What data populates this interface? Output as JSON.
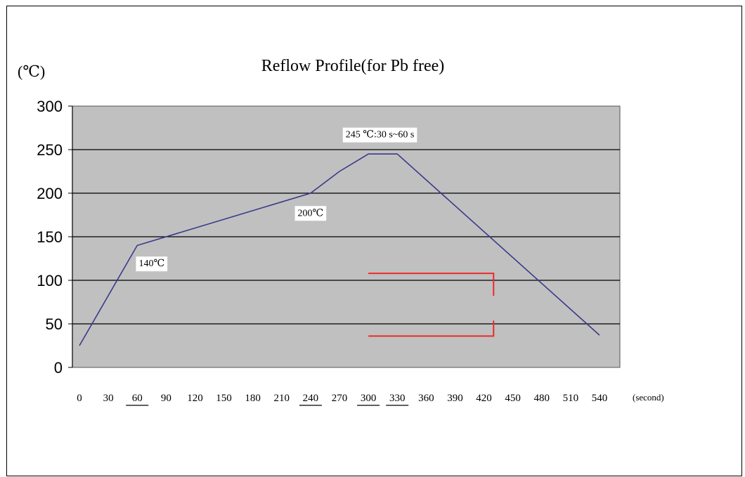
{
  "chart_data": {
    "type": "line",
    "title": "Reflow Profile(for Pb free)",
    "ylabel": "(℃)",
    "xlabel": "(second)",
    "ylim": [
      0,
      300
    ],
    "xlim": [
      0,
      540
    ],
    "yticks": [
      0,
      50,
      100,
      150,
      200,
      250,
      300
    ],
    "xticks": [
      0,
      30,
      60,
      90,
      120,
      150,
      180,
      210,
      240,
      270,
      300,
      330,
      360,
      390,
      420,
      450,
      480,
      510,
      540
    ],
    "xticks_underlined": [
      60,
      240,
      300,
      330
    ],
    "grid": true,
    "background": "#c0c0c0",
    "series": [
      {
        "color": "#3a3a8c",
        "x": [
          0,
          60,
          240,
          270,
          300,
          330,
          540
        ],
        "y": [
          25,
          140,
          200,
          225,
          245,
          245,
          37
        ]
      }
    ],
    "annotations": [
      {
        "text": "245 ℃:30 s~60 s",
        "x": 312,
        "y": 268
      },
      {
        "text": "200℃",
        "x": 240,
        "y": 178
      },
      {
        "text": "140℃",
        "x": 75,
        "y": 120
      }
    ],
    "markers": {
      "color": "#ee2a2a",
      "upper_y": 108,
      "lower_y": 36,
      "x_start": 300,
      "x_end": 430
    }
  }
}
